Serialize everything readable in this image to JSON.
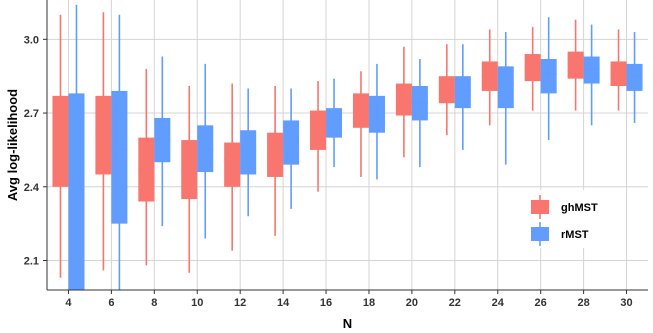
{
  "chart_data": {
    "type": "box",
    "xlabel": "N",
    "ylabel": "Avg log-likelihood",
    "categories": [
      4,
      6,
      8,
      10,
      12,
      14,
      16,
      18,
      20,
      22,
      24,
      26,
      28,
      30
    ],
    "ylim": [
      1.98,
      3.16
    ],
    "yticks": [
      2.1,
      2.4,
      2.7,
      3.0
    ],
    "ytick_labels": [
      "2.1",
      "2.4",
      "2.7",
      "3.0"
    ],
    "grid": true,
    "legend_position": "bottom-right",
    "series": [
      {
        "name": "ghMST",
        "color": "#F8766D",
        "boxes": [
          {
            "min": 2.03,
            "q1": 2.4,
            "median": 2.56,
            "q3": 2.77,
            "max": 3.1
          },
          {
            "min": 2.06,
            "q1": 2.45,
            "median": 2.62,
            "q3": 2.77,
            "max": 3.11
          },
          {
            "min": 2.08,
            "q1": 2.34,
            "median": 2.47,
            "q3": 2.6,
            "max": 2.88
          },
          {
            "min": 2.05,
            "q1": 2.35,
            "median": 2.47,
            "q3": 2.59,
            "max": 2.81
          },
          {
            "min": 2.14,
            "q1": 2.4,
            "median": 2.51,
            "q3": 2.58,
            "max": 2.82
          },
          {
            "min": 2.2,
            "q1": 2.44,
            "median": 2.55,
            "q3": 2.62,
            "max": 2.81
          },
          {
            "min": 2.38,
            "q1": 2.55,
            "median": 2.64,
            "q3": 2.71,
            "max": 2.83
          },
          {
            "min": 2.44,
            "q1": 2.64,
            "median": 2.71,
            "q3": 2.78,
            "max": 2.87
          },
          {
            "min": 2.52,
            "q1": 2.69,
            "median": 2.75,
            "q3": 2.82,
            "max": 2.97
          },
          {
            "min": 2.61,
            "q1": 2.74,
            "median": 2.79,
            "q3": 2.85,
            "max": 2.98
          },
          {
            "min": 2.65,
            "q1": 2.79,
            "median": 2.85,
            "q3": 2.91,
            "max": 3.04
          },
          {
            "min": 2.71,
            "q1": 2.83,
            "median": 2.88,
            "q3": 2.94,
            "max": 3.05
          },
          {
            "min": 2.71,
            "q1": 2.84,
            "median": 2.89,
            "q3": 2.95,
            "max": 3.08
          },
          {
            "min": 2.71,
            "q1": 2.81,
            "median": 2.86,
            "q3": 2.91,
            "max": 3.04
          }
        ]
      },
      {
        "name": "rMST",
        "color": "#619CFF",
        "boxes": [
          {
            "min": 1.98,
            "q1": 1.98,
            "median": 2.42,
            "q3": 2.78,
            "max": 3.14
          },
          {
            "min": 1.98,
            "q1": 2.25,
            "median": 2.55,
            "q3": 2.79,
            "max": 3.1
          },
          {
            "min": 2.24,
            "q1": 2.5,
            "median": 2.59,
            "q3": 2.68,
            "max": 2.93
          },
          {
            "min": 2.19,
            "q1": 2.46,
            "median": 2.55,
            "q3": 2.65,
            "max": 2.9
          },
          {
            "min": 2.28,
            "q1": 2.45,
            "median": 2.55,
            "q3": 2.63,
            "max": 2.8
          },
          {
            "min": 2.31,
            "q1": 2.49,
            "median": 2.58,
            "q3": 2.67,
            "max": 2.8
          },
          {
            "min": 2.48,
            "q1": 2.6,
            "median": 2.67,
            "q3": 2.72,
            "max": 2.84
          },
          {
            "min": 2.43,
            "q1": 2.62,
            "median": 2.71,
            "q3": 2.77,
            "max": 2.9
          },
          {
            "min": 2.48,
            "q1": 2.67,
            "median": 2.74,
            "q3": 2.81,
            "max": 2.92
          },
          {
            "min": 2.55,
            "q1": 2.72,
            "median": 2.79,
            "q3": 2.85,
            "max": 2.98
          },
          {
            "min": 2.49,
            "q1": 2.72,
            "median": 2.82,
            "q3": 2.89,
            "max": 3.03
          },
          {
            "min": 2.59,
            "q1": 2.78,
            "median": 2.86,
            "q3": 2.92,
            "max": 3.09
          },
          {
            "min": 2.65,
            "q1": 2.82,
            "median": 2.88,
            "q3": 2.93,
            "max": 3.06
          },
          {
            "min": 2.66,
            "q1": 2.79,
            "median": 2.85,
            "q3": 2.9,
            "max": 3.03
          }
        ]
      }
    ]
  }
}
